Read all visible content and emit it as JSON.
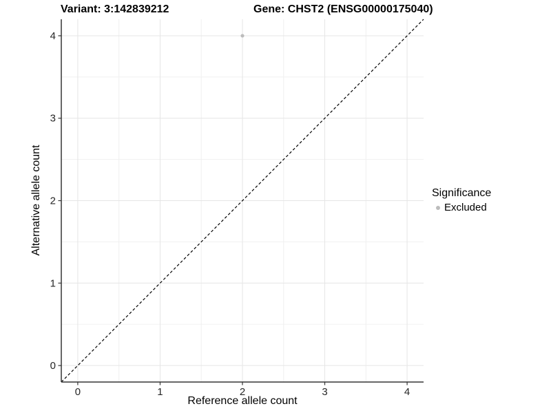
{
  "titles": {
    "variant": "Variant: 3:142839212",
    "gene": "Gene: CHST2 (ENSG00000175040)"
  },
  "chart_data": {
    "type": "scatter",
    "title_left": "Variant: 3:142839212",
    "title_right": "Gene: CHST2 (ENSG00000175040)",
    "xlabel": "Reference allele count",
    "ylabel": "Alternative allele count",
    "xlim": [
      -0.2,
      4.2
    ],
    "ylim": [
      -0.2,
      4.2
    ],
    "x_ticks": [
      0,
      1,
      2,
      3,
      4
    ],
    "y_ticks": [
      0,
      1,
      2,
      3,
      4
    ],
    "x_minor_ticks": [
      0.5,
      1.5,
      2.5,
      3.5
    ],
    "y_minor_ticks": [
      0.5,
      1.5,
      2.5,
      3.5
    ],
    "grid": "major and minor, light gray on white",
    "series": [
      {
        "name": "Excluded",
        "marker": "circle",
        "color": "#bcbcbc",
        "points": [
          {
            "x": 2,
            "y": 4
          }
        ]
      }
    ],
    "reference_line": {
      "kind": "identity y=x",
      "style": "dashed",
      "color": "#000000",
      "from": [
        -0.2,
        -0.2
      ],
      "to": [
        4.2,
        4.2
      ]
    },
    "legend": {
      "title": "Significance",
      "position": "right",
      "items": [
        {
          "label": "Excluded",
          "marker": "circle",
          "color": "#bcbcbc"
        }
      ]
    }
  },
  "colors": {
    "background": "#ffffff",
    "grid_major": "#e5e5e5",
    "grid_minor": "#f0f0f0",
    "axis_line": "#333333",
    "tick_mark": "#333333",
    "tick_label": "#262626",
    "point": "#bcbcbc",
    "reference_line": "#000000"
  }
}
